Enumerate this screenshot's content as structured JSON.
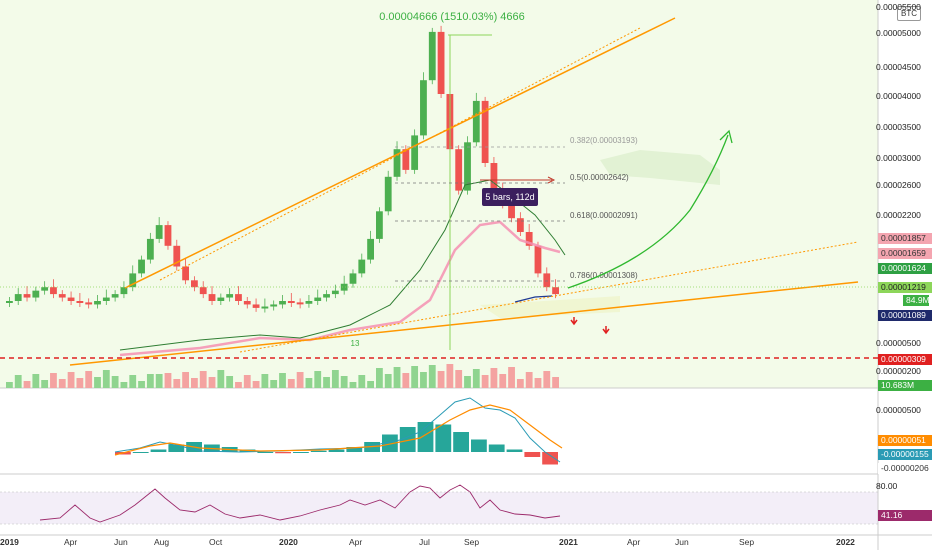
{
  "symbol": "BTC",
  "measure_label": "0.00004666 (1510.03%) 4666",
  "range_label": "5 bars, 112d",
  "wave_label": "13",
  "fib_labels": [
    "0.382(0.00003193)",
    "0.5(0.00002642)",
    "0.618(0.00002091)",
    "0.786(0.00001308)"
  ],
  "price_axis": [
    "0.00005500",
    "0.00005000",
    "0.00004500",
    "0.00004000",
    "0.00003500",
    "0.00003000",
    "0.00002600",
    "0.00002200",
    "0.00000500",
    "0.00000200"
  ],
  "price_tags": [
    {
      "text": "0.00001857",
      "color": "#f4a5b0"
    },
    {
      "text": "0.00001659",
      "color": "#f4a5b0"
    },
    {
      "text": "0.00001624",
      "color": "#2ea043"
    },
    {
      "text": "0.00001219",
      "color": "#8dd65a"
    },
    {
      "text": "84.9M",
      "color": "#3cb043"
    },
    {
      "text": "0.00001089",
      "color": "#1f2a6b"
    },
    {
      "text": "0.00000309",
      "color": "#e02020"
    },
    {
      "text": "10.683M",
      "color": "#3cb043"
    }
  ],
  "macd_axis": [
    "0.00000500"
  ],
  "macd_tags": [
    {
      "text": "0.00000051",
      "color": "#ff8c00"
    },
    {
      "text": "-0.00000155",
      "color": "#2a9bb5"
    },
    {
      "text": "-0.00000206",
      "color": "#e64a6a"
    }
  ],
  "rsi_axis": [
    "80.00"
  ],
  "rsi_tag": {
    "text": "41.16",
    "color": "#9c2a6b"
  },
  "time_axis": [
    "2019",
    "Apr",
    "Jun",
    "Aug",
    "Oct",
    "2020",
    "Apr",
    "Jul",
    "Sep",
    "2021",
    "Apr",
    "Jun",
    "Sep",
    "2022"
  ],
  "colors": {
    "up": "#4caf50",
    "down": "#ef5350",
    "bg": "#f3fbe9",
    "trend": "#ff9800"
  },
  "chart_data": {
    "type": "candlestick",
    "symbol": "BTC",
    "x_range": [
      "2019",
      "2022"
    ],
    "ylim": [
      2e-06,
      5.5e-05
    ],
    "annotation": "0.00004666 (1510.03%) 4666",
    "fibonacci": [
      {
        "level": 0.382,
        "value": 3.193e-05
      },
      {
        "level": 0.5,
        "value": 2.642e-05
      },
      {
        "level": 0.618,
        "value": 2.091e-05
      },
      {
        "level": 0.786,
        "value": 1.308e-05
      }
    ],
    "closes": [
      1.0,
      1.1,
      1.05,
      1.15,
      1.2,
      1.1,
      1.05,
      1.0,
      0.98,
      0.95,
      1.0,
      1.05,
      1.1,
      1.2,
      1.4,
      1.6,
      1.9,
      2.1,
      1.8,
      1.5,
      1.3,
      1.2,
      1.1,
      1.0,
      1.05,
      1.1,
      1.0,
      0.95,
      0.9,
      0.92,
      0.95,
      1.0,
      0.98,
      0.96,
      1.0,
      1.05,
      1.1,
      1.15,
      1.25,
      1.4,
      1.6,
      1.9,
      2.3,
      2.8,
      3.2,
      2.9,
      3.4,
      4.2,
      4.9,
      4.0,
      3.2,
      2.6,
      3.3,
      3.9,
      3.0,
      2.6,
      2.4,
      2.2,
      2.0,
      1.8,
      1.4,
      1.2,
      1.1
    ],
    "macd": [
      -0.1,
      0.0,
      0.1,
      0.3,
      0.4,
      0.3,
      0.2,
      0.1,
      0.0,
      -0.05,
      0.0,
      0.05,
      0.1,
      0.2,
      0.4,
      0.7,
      1.0,
      1.2,
      1.1,
      0.8,
      0.5,
      0.3,
      0.1,
      -0.2,
      -0.5
    ],
    "rsi": [
      45,
      50,
      55,
      62,
      70,
      60,
      52,
      48,
      45,
      50,
      55,
      58,
      62,
      60,
      65,
      70,
      75,
      68,
      60,
      55,
      50,
      48,
      42,
      41.16
    ]
  }
}
